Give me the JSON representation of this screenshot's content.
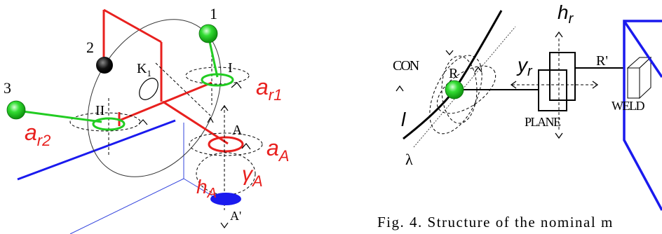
{
  "left_figure": {
    "labels": {
      "point_1": "1",
      "point_2": "2",
      "point_3": "3",
      "joint_k1": "K",
      "joint_k1_sub": "1",
      "joint_I": "I",
      "joint_II": "II",
      "joint_A": "A",
      "joint_A_prime": "A'",
      "a_r1": "a",
      "a_r1_sub": "r1",
      "a_r2": "a",
      "a_r2_sub": "r2",
      "a_A": "a",
      "a_A_sub": "A",
      "gamma_A": "γ",
      "gamma_A_sub": "A",
      "h_A": "h",
      "h_A_sub": "A"
    }
  },
  "right_figure": {
    "labels": {
      "h_r": "h",
      "h_r_sub": "r",
      "con": "CON",
      "r": "R",
      "r_prime": "R'",
      "y_r": "y",
      "y_r_sub": "r",
      "plane": "PLANE",
      "weld": "WELD",
      "l": "l",
      "lambda": "λ"
    }
  },
  "caption": "Fig. 4. Structure of the nominal m",
  "colors": {
    "red": "#e8201e",
    "green": "#22cc22",
    "blue": "#1a1aee",
    "blue_thin": "#3344dd",
    "black": "#000000"
  }
}
